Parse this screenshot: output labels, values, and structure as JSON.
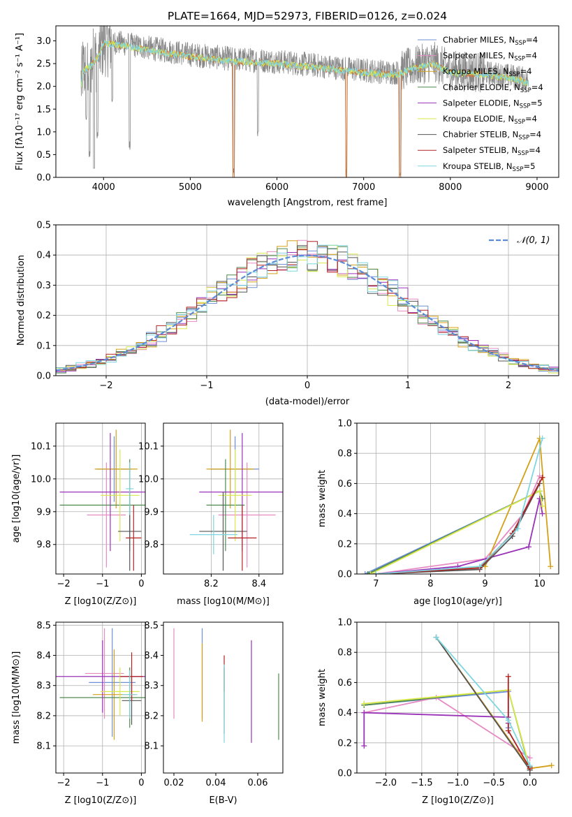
{
  "title": "PLATE=1664, MJD=52973, FIBERID=0126, z=0.024",
  "colors": [
    "#6f8fd6",
    "#e78ac3",
    "#d4a017",
    "#4f8a4f",
    "#9a32b8",
    "#d9e84a",
    "#555555",
    "#b22222",
    "#7fd6e0"
  ],
  "chart_data": [
    {
      "id": "spectrum",
      "type": "line",
      "xlabel": "wavelength [Angstrom, rest frame]",
      "ylabel": "Flux [fλ10⁻¹⁷ erg cm⁻² s⁻¹ A⁻¹]",
      "xlim": [
        3450,
        9250
      ],
      "ylim": [
        0,
        3.33
      ],
      "xticks": [
        4000,
        5000,
        6000,
        7000,
        8000,
        9000
      ],
      "yticks": [
        0.0,
        0.5,
        1.0,
        1.5,
        2.0,
        2.5,
        3.0
      ],
      "grid": false,
      "legend_position": "top-right",
      "legend": [
        "Chabrier MILES, N_SSP=4",
        "Salpeter MILES, N_SSP=4",
        "Kroupa MILES, N_SSP=4",
        "Chabrier ELODIE, N_SSP=4",
        "Salpeter ELODIE, N_SSP=5",
        "Kroupa ELODIE, N_SSP=4",
        "Chabrier STELIB, N_SSP=4",
        "Salpeter STELIB, N_SSP=4",
        "Kroupa STELIB, N_SSP=5"
      ],
      "continuum": [
        [
          3750,
          2.35
        ],
        [
          3850,
          2.5
        ],
        [
          3950,
          2.7
        ],
        [
          4000,
          3.0
        ],
        [
          4200,
          2.95
        ],
        [
          4500,
          2.85
        ],
        [
          5000,
          2.7
        ],
        [
          5500,
          2.6
        ],
        [
          6000,
          2.55
        ],
        [
          6500,
          2.45
        ],
        [
          7000,
          2.35
        ],
        [
          7400,
          2.3
        ],
        [
          7500,
          2.4
        ],
        [
          7800,
          2.55
        ],
        [
          8000,
          2.35
        ],
        [
          8400,
          2.3
        ],
        [
          8800,
          2.2
        ],
        [
          8900,
          2.1
        ]
      ],
      "dips": [
        [
          3800,
          1.2
        ],
        [
          3840,
          0.4
        ],
        [
          3890,
          0.05
        ],
        [
          3930,
          0.8
        ],
        [
          4100,
          1.6
        ],
        [
          4300,
          0.6
        ],
        [
          5500,
          0.0
        ],
        [
          5780,
          0.9
        ],
        [
          6800,
          0.0
        ],
        [
          7420,
          0.0
        ]
      ]
    },
    {
      "id": "residuals",
      "type": "histogram",
      "xlabel": "(data-model)/error",
      "ylabel": "Normed distribution",
      "xlim": [
        -2.5,
        2.5
      ],
      "ylim": [
        0,
        0.5
      ],
      "xticks": [
        -2,
        -1,
        0,
        1,
        2
      ],
      "yticks": [
        0.0,
        0.1,
        0.2,
        0.3,
        0.4,
        0.5
      ],
      "grid": true,
      "bin_width": 0.1,
      "reference_curve": "𝒩(0, 1)",
      "legend_position": "top-right"
    },
    {
      "id": "z-age",
      "type": "scatter",
      "xlabel": "Z [log10(Z/Z⊙)]",
      "ylabel": "age [log10(age/yr)]",
      "xlim": [
        -2.2,
        0.1
      ],
      "ylim": [
        9.71,
        10.17
      ],
      "xticks": [
        -2,
        -1,
        0
      ],
      "yticks": [
        9.8,
        9.9,
        10.0,
        10.1
      ],
      "grid": true,
      "points": [
        {
          "x": -0.7,
          "y": 10.03,
          "xerr": 0.45,
          "yerr": 0.1
        },
        {
          "x": -0.9,
          "y": 9.89,
          "xerr": 0.5,
          "yerr": 0.16
        },
        {
          "x": -0.65,
          "y": 10.03,
          "xerr": 0.55,
          "yerr": 0.12
        },
        {
          "x": -0.3,
          "y": 9.92,
          "xerr": 1.8,
          "yerr": 0.14
        },
        {
          "x": -0.8,
          "y": 9.96,
          "xerr": 1.3,
          "yerr": 0.18
        },
        {
          "x": -0.55,
          "y": 9.95,
          "xerr": 0.5,
          "yerr": 0.14
        },
        {
          "x": -0.3,
          "y": 9.84,
          "xerr": 0.3,
          "yerr": 0.12
        },
        {
          "x": -0.2,
          "y": 9.82,
          "xerr": 0.2,
          "yerr": 0.1
        },
        {
          "x": -0.3,
          "y": 9.97,
          "xerr": 0.1,
          "yerr": 0.08
        }
      ]
    },
    {
      "id": "mass-age",
      "type": "scatter",
      "xlabel": "mass [log10(M/M⊙)]",
      "ylabel": "",
      "xlim": [
        8.0,
        8.5
      ],
      "ylim": [
        9.71,
        10.17
      ],
      "xticks": [
        8.2,
        8.4
      ],
      "yticks": [
        9.8,
        9.9,
        10.0,
        10.1
      ],
      "grid": true,
      "points": [
        {
          "x": 8.3,
          "y": 10.03,
          "xerr": 0.1,
          "yerr": 0.1
        },
        {
          "x": 8.35,
          "y": 9.89,
          "xerr": 0.12,
          "yerr": 0.16
        },
        {
          "x": 8.28,
          "y": 10.03,
          "xerr": 0.1,
          "yerr": 0.12
        },
        {
          "x": 8.26,
          "y": 9.92,
          "xerr": 0.08,
          "yerr": 0.14
        },
        {
          "x": 8.33,
          "y": 9.96,
          "xerr": 0.18,
          "yerr": 0.18
        },
        {
          "x": 8.3,
          "y": 9.95,
          "xerr": 0.07,
          "yerr": 0.14
        },
        {
          "x": 8.25,
          "y": 9.84,
          "xerr": 0.1,
          "yerr": 0.12
        },
        {
          "x": 8.33,
          "y": 9.82,
          "xerr": 0.06,
          "yerr": 0.1
        },
        {
          "x": 8.21,
          "y": 9.83,
          "xerr": 0.1,
          "yerr": 0.06
        }
      ]
    },
    {
      "id": "age-weight",
      "type": "line",
      "xlabel": "age [log10(age/yr)]",
      "ylabel": "mass weight",
      "xlim": [
        6.65,
        10.35
      ],
      "ylim": [
        0,
        1.0
      ],
      "xticks": [
        7,
        8,
        9,
        10
      ],
      "yticks": [
        0.0,
        0.2,
        0.4,
        0.6,
        0.8,
        1.0
      ],
      "grid": true,
      "series": [
        {
          "x": [
            6.8,
            10.0
          ],
          "y": [
            0.0,
            0.55
          ]
        },
        {
          "x": [
            7.0,
            9.0,
            9.7,
            10.0
          ],
          "y": [
            0.0,
            0.1,
            0.4,
            0.65
          ]
        },
        {
          "x": [
            7.0,
            9.0,
            10.0,
            10.2
          ],
          "y": [
            0.0,
            0.05,
            0.9,
            0.05
          ]
        },
        {
          "x": [
            6.85,
            10.0,
            10.05
          ],
          "y": [
            0.0,
            0.55,
            0.5
          ]
        },
        {
          "x": [
            7.0,
            8.5,
            9.8,
            10.0,
            10.05
          ],
          "y": [
            0.0,
            0.05,
            0.18,
            0.5,
            0.4
          ]
        },
        {
          "x": [
            6.9,
            10.0,
            10.05
          ],
          "y": [
            0.0,
            0.55,
            0.45
          ]
        },
        {
          "x": [
            7.0,
            8.9,
            9.5,
            10.0
          ],
          "y": [
            0.0,
            0.03,
            0.25,
            0.6
          ]
        },
        {
          "x": [
            7.0,
            8.9,
            9.5,
            10.05
          ],
          "y": [
            0.0,
            0.04,
            0.27,
            0.64
          ]
        },
        {
          "x": [
            7.0,
            8.9,
            9.6,
            10.05
          ],
          "y": [
            0.0,
            0.05,
            0.3,
            0.9
          ]
        }
      ]
    },
    {
      "id": "z-mass",
      "type": "scatter",
      "xlabel": "Z [log10(Z/Z⊙)]",
      "ylabel": "mass [log10(M/M⊙)]",
      "xlim": [
        -2.2,
        0.1
      ],
      "ylim": [
        8.01,
        8.51
      ],
      "xticks": [
        -2,
        -1,
        0
      ],
      "yticks": [
        8.1,
        8.2,
        8.3,
        8.4,
        8.5
      ],
      "grid": true,
      "points": [
        {
          "x": -0.75,
          "y": 8.31,
          "xerr": 0.6,
          "yerr": 0.18
        },
        {
          "x": -0.95,
          "y": 8.34,
          "xerr": 0.5,
          "yerr": 0.15
        },
        {
          "x": -0.7,
          "y": 8.27,
          "xerr": 0.55,
          "yerr": 0.15
        },
        {
          "x": -0.3,
          "y": 8.26,
          "xerr": 1.8,
          "yerr": 0.1
        },
        {
          "x": -1.0,
          "y": 8.33,
          "xerr": 1.3,
          "yerr": 0.12
        },
        {
          "x": -0.55,
          "y": 8.28,
          "xerr": 0.5,
          "yerr": 0.08
        },
        {
          "x": -0.25,
          "y": 8.25,
          "xerr": 0.25,
          "yerr": 0.08
        },
        {
          "x": -0.25,
          "y": 8.33,
          "xerr": 0.3,
          "yerr": 0.08
        },
        {
          "x": -0.3,
          "y": 8.27,
          "xerr": 0.2,
          "yerr": 0.08
        }
      ]
    },
    {
      "id": "ebv-mass",
      "type": "scatter",
      "xlabel": "E(B-V)",
      "ylabel": "",
      "xlim": [
        0.015,
        0.072
      ],
      "ylim": [
        8.01,
        8.51
      ],
      "xticks": [
        0.02,
        0.04,
        0.06
      ],
      "yticks": [
        8.1,
        8.2,
        8.3,
        8.4,
        8.5
      ],
      "grid": false,
      "points": [
        {
          "x": 0.0335,
          "y": 8.34,
          "xerr": 0,
          "yerr": 0.15
        },
        {
          "x": 0.02,
          "y": 8.34,
          "xerr": 0,
          "yerr": 0.15
        },
        {
          "x": 0.0335,
          "y": 8.31,
          "xerr": 0,
          "yerr": 0.13
        },
        {
          "x": 0.07,
          "y": 8.23,
          "xerr": 0,
          "yerr": 0.11
        },
        {
          "x": 0.057,
          "y": 8.28,
          "xerr": 0,
          "yerr": 0.17
        },
        {
          "x": 0.044,
          "y": 8.27,
          "xerr": 0,
          "yerr": 0.08
        },
        {
          "x": 0.044,
          "y": 8.25,
          "xerr": 0,
          "yerr": 0.11
        },
        {
          "x": 0.044,
          "y": 8.34,
          "xerr": 0,
          "yerr": 0.06
        },
        {
          "x": 0.044,
          "y": 8.24,
          "xerr": 0,
          "yerr": 0.13
        }
      ]
    },
    {
      "id": "z-weight",
      "type": "line",
      "xlabel": "Z [log10(Z/Z⊙)]",
      "ylabel": "mass weight",
      "xlim": [
        -2.4,
        0.4
      ],
      "ylim": [
        0,
        1.0
      ],
      "xticks": [
        -2.0,
        -1.5,
        -1.0,
        -0.5,
        0.0
      ],
      "yticks": [
        0.0,
        0.2,
        0.4,
        0.6,
        0.8,
        1.0
      ],
      "grid": true,
      "series": [
        {
          "x": [
            -2.3,
            -0.3,
            -0.3
          ],
          "y": [
            0.45,
            0.54,
            0.3
          ]
        },
        {
          "x": [
            -2.3,
            -1.3,
            0.0
          ],
          "y": [
            0.4,
            0.5,
            0.1
          ]
        },
        {
          "x": [
            -1.3,
            0.0,
            0.3
          ],
          "y": [
            0.9,
            0.03,
            0.05
          ]
        },
        {
          "x": [
            -2.3,
            -0.3,
            0.0
          ],
          "y": [
            0.45,
            0.55,
            0.02
          ]
        },
        {
          "x": [
            -2.3,
            -2.3,
            -0.3,
            -0.3
          ],
          "y": [
            0.18,
            0.4,
            0.37,
            0.33
          ]
        },
        {
          "x": [
            -2.3,
            -0.3,
            0.0
          ],
          "y": [
            0.46,
            0.55,
            0.03
          ]
        },
        {
          "x": [
            -1.3,
            0.0,
            0.0
          ],
          "y": [
            0.9,
            0.02,
            0.04
          ]
        },
        {
          "x": [
            -0.3,
            -0.3,
            0.0
          ],
          "y": [
            0.64,
            0.28,
            0.03
          ]
        },
        {
          "x": [
            -1.3,
            -0.3,
            0.0
          ],
          "y": [
            0.9,
            0.35,
            0.05
          ]
        }
      ]
    }
  ]
}
